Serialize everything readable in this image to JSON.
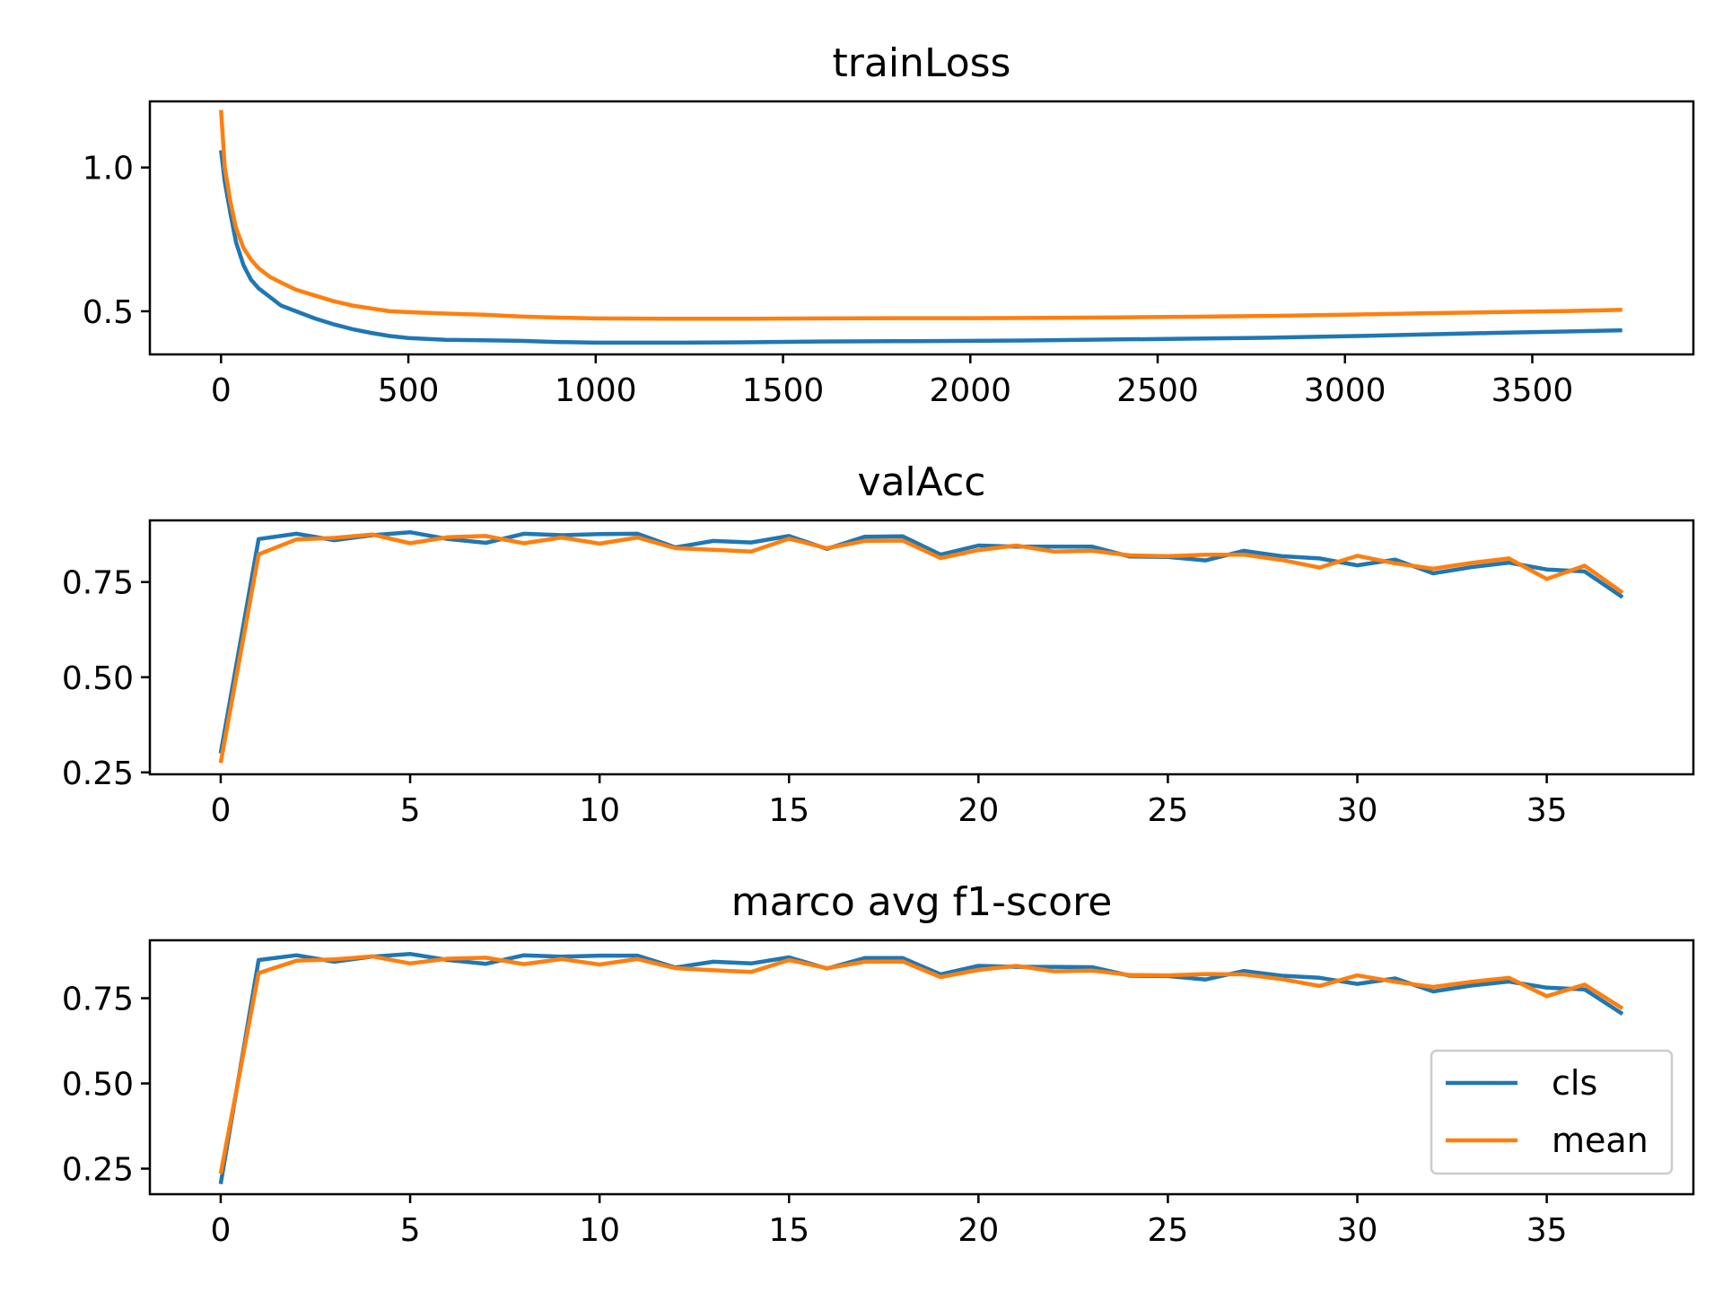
{
  "colors": {
    "cls": "#1f77b4",
    "mean": "#ff7f0e"
  },
  "legend": {
    "placement": "lower-right",
    "entries": [
      "cls",
      "mean"
    ]
  },
  "chart_data": [
    {
      "type": "line",
      "title": "trainLoss",
      "xlabel": "",
      "ylabel": "",
      "xlim": [
        -190,
        3930
      ],
      "ylim": [
        0.35,
        1.23
      ],
      "xticks": [
        0,
        500,
        1000,
        1500,
        2000,
        2500,
        3000,
        3500
      ],
      "xtick_labels": [
        "0",
        "500",
        "1000",
        "1500",
        "2000",
        "2500",
        "3000",
        "3500"
      ],
      "yticks": [
        0.5,
        1.0
      ],
      "ytick_labels": [
        "0.5",
        "1.0"
      ],
      "grid": false,
      "series": [
        {
          "name": "cls",
          "x": [
            0,
            10,
            25,
            40,
            60,
            80,
            100,
            130,
            160,
            200,
            250,
            300,
            350,
            400,
            450,
            500,
            600,
            700,
            800,
            900,
            1000,
            1200,
            1400,
            1600,
            1800,
            2000,
            2200,
            2400,
            2600,
            2800,
            3000,
            3200,
            3400,
            3600,
            3740
          ],
          "y": [
            1.06,
            0.95,
            0.84,
            0.74,
            0.66,
            0.61,
            0.58,
            0.55,
            0.52,
            0.5,
            0.475,
            0.455,
            0.438,
            0.425,
            0.414,
            0.407,
            0.401,
            0.399,
            0.397,
            0.393,
            0.391,
            0.391,
            0.392,
            0.395,
            0.396,
            0.397,
            0.399,
            0.402,
            0.405,
            0.408,
            0.413,
            0.419,
            0.425,
            0.43,
            0.434
          ]
        },
        {
          "name": "mean",
          "x": [
            0,
            10,
            25,
            40,
            60,
            80,
            100,
            130,
            160,
            200,
            250,
            300,
            350,
            400,
            450,
            500,
            600,
            700,
            800,
            900,
            1000,
            1200,
            1400,
            1600,
            1800,
            2000,
            2200,
            2400,
            2600,
            2800,
            3000,
            3200,
            3400,
            3600,
            3740
          ],
          "y": [
            1.2,
            1.0,
            0.88,
            0.79,
            0.72,
            0.68,
            0.65,
            0.62,
            0.6,
            0.575,
            0.555,
            0.535,
            0.52,
            0.51,
            0.5,
            0.497,
            0.492,
            0.488,
            0.482,
            0.478,
            0.475,
            0.474,
            0.474,
            0.475,
            0.476,
            0.476,
            0.477,
            0.479,
            0.481,
            0.484,
            0.488,
            0.493,
            0.497,
            0.501,
            0.505
          ]
        }
      ]
    },
    {
      "type": "line",
      "title": "valAcc",
      "xlabel": "",
      "ylabel": "",
      "xlim": [
        -1.87,
        38.87
      ],
      "ylim": [
        0.245,
        0.912
      ],
      "xticks": [
        0,
        5,
        10,
        15,
        20,
        25,
        30,
        35
      ],
      "xtick_labels": [
        "0",
        "5",
        "10",
        "15",
        "20",
        "25",
        "30",
        "35"
      ],
      "yticks": [
        0.25,
        0.5,
        0.75
      ],
      "ytick_labels": [
        "0.25",
        "0.50",
        "0.75"
      ],
      "grid": false,
      "series": [
        {
          "name": "cls",
          "x": [
            0,
            1,
            2,
            3,
            4,
            5,
            6,
            7,
            8,
            9,
            10,
            11,
            12,
            13,
            14,
            15,
            16,
            17,
            18,
            19,
            20,
            21,
            22,
            23,
            24,
            25,
            26,
            27,
            28,
            29,
            30,
            31,
            32,
            33,
            34,
            35,
            36,
            37
          ],
          "y": [
            0.3,
            0.863,
            0.877,
            0.86,
            0.873,
            0.881,
            0.863,
            0.853,
            0.877,
            0.873,
            0.876,
            0.877,
            0.841,
            0.858,
            0.854,
            0.871,
            0.837,
            0.869,
            0.87,
            0.822,
            0.846,
            0.843,
            0.843,
            0.843,
            0.817,
            0.816,
            0.807,
            0.832,
            0.818,
            0.812,
            0.794,
            0.809,
            0.773,
            0.789,
            0.801,
            0.783,
            0.778,
            0.71
          ]
        },
        {
          "name": "mean",
          "x": [
            0,
            1,
            2,
            3,
            4,
            5,
            6,
            7,
            8,
            9,
            10,
            11,
            12,
            13,
            14,
            15,
            16,
            17,
            18,
            19,
            20,
            21,
            22,
            23,
            24,
            25,
            26,
            27,
            28,
            29,
            30,
            31,
            32,
            33,
            34,
            35,
            36,
            37
          ],
          "y": [
            0.275,
            0.823,
            0.862,
            0.866,
            0.875,
            0.852,
            0.868,
            0.871,
            0.852,
            0.867,
            0.851,
            0.867,
            0.839,
            0.835,
            0.83,
            0.864,
            0.839,
            0.858,
            0.859,
            0.813,
            0.834,
            0.846,
            0.83,
            0.832,
            0.82,
            0.818,
            0.822,
            0.822,
            0.808,
            0.788,
            0.819,
            0.799,
            0.785,
            0.8,
            0.812,
            0.758,
            0.793,
            0.722
          ]
        }
      ]
    },
    {
      "type": "line",
      "title": "marco avg f1-score",
      "xlabel": "",
      "ylabel": "",
      "xlim": [
        -1.87,
        38.87
      ],
      "ylim": [
        0.175,
        0.92
      ],
      "xticks": [
        0,
        5,
        10,
        15,
        20,
        25,
        30,
        35
      ],
      "xtick_labels": [
        "0",
        "5",
        "10",
        "15",
        "20",
        "25",
        "30",
        "35"
      ],
      "yticks": [
        0.25,
        0.5,
        0.75
      ],
      "ytick_labels": [
        "0.25",
        "0.50",
        "0.75"
      ],
      "grid": false,
      "legend": "lower right",
      "series": [
        {
          "name": "cls",
          "x": [
            0,
            1,
            2,
            3,
            4,
            5,
            6,
            7,
            8,
            9,
            10,
            11,
            12,
            13,
            14,
            15,
            16,
            17,
            18,
            19,
            20,
            21,
            22,
            23,
            24,
            25,
            26,
            27,
            28,
            29,
            30,
            31,
            32,
            33,
            34,
            35,
            36,
            37
          ],
          "y": [
            0.205,
            0.862,
            0.876,
            0.857,
            0.872,
            0.88,
            0.862,
            0.851,
            0.876,
            0.872,
            0.875,
            0.875,
            0.84,
            0.857,
            0.852,
            0.87,
            0.837,
            0.868,
            0.868,
            0.82,
            0.845,
            0.842,
            0.842,
            0.841,
            0.816,
            0.815,
            0.805,
            0.83,
            0.816,
            0.81,
            0.792,
            0.808,
            0.77,
            0.787,
            0.799,
            0.781,
            0.776,
            0.704
          ]
        },
        {
          "name": "mean",
          "x": [
            0,
            1,
            2,
            3,
            4,
            5,
            6,
            7,
            8,
            9,
            10,
            11,
            12,
            13,
            14,
            15,
            16,
            17,
            18,
            19,
            20,
            21,
            22,
            23,
            24,
            25,
            26,
            27,
            28,
            29,
            30,
            31,
            32,
            33,
            34,
            35,
            36,
            37
          ],
          "y": [
            0.235,
            0.824,
            0.86,
            0.864,
            0.873,
            0.852,
            0.866,
            0.869,
            0.85,
            0.865,
            0.849,
            0.865,
            0.838,
            0.832,
            0.827,
            0.862,
            0.838,
            0.857,
            0.858,
            0.812,
            0.833,
            0.845,
            0.829,
            0.831,
            0.818,
            0.817,
            0.821,
            0.82,
            0.806,
            0.786,
            0.817,
            0.798,
            0.783,
            0.798,
            0.81,
            0.756,
            0.79,
            0.72
          ]
        }
      ]
    }
  ]
}
